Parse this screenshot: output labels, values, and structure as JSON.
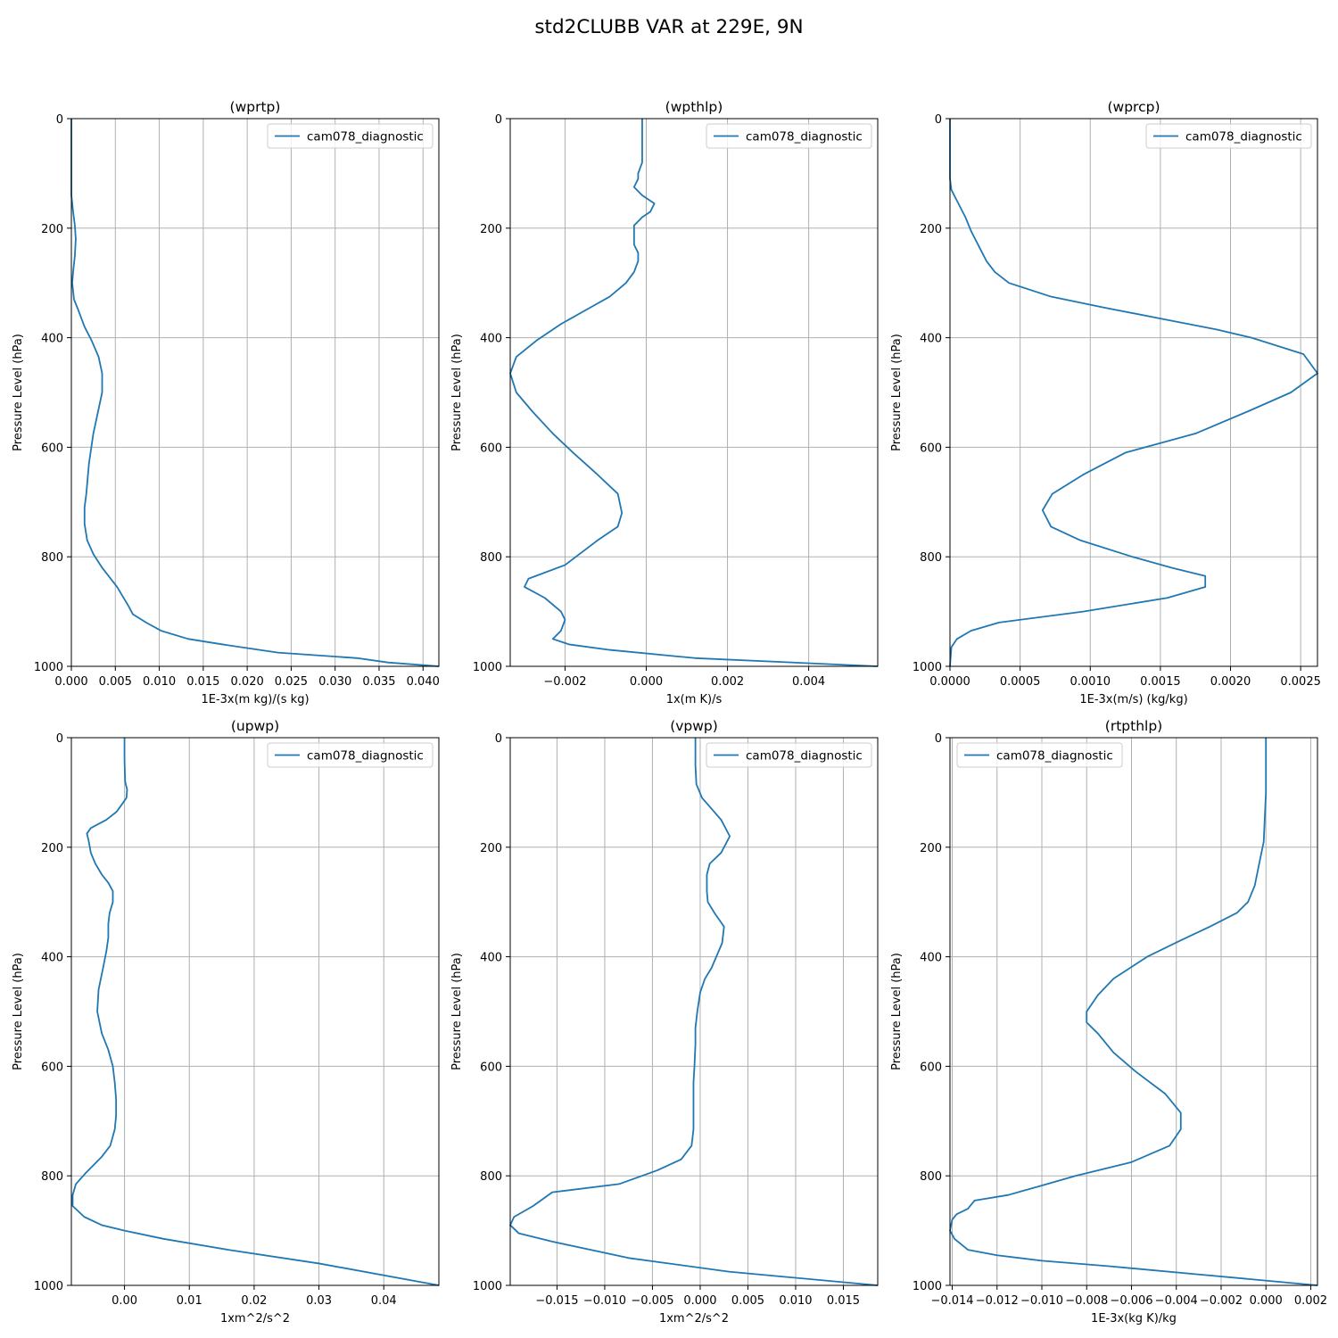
{
  "figure": {
    "title": "std2CLUBB VAR at 229E, 9N"
  },
  "style": {
    "line_color": "#1f77b4"
  },
  "chart_data": [
    {
      "type": "line",
      "title": "(wprtp)",
      "xlabel": "1E-3x(m kg)/(s kg)",
      "ylabel": "Pressure Level (hPa)",
      "xlim": [
        0,
        0.0418
      ],
      "ylim": [
        1000,
        0
      ],
      "xticks": [
        0,
        0.005,
        0.01,
        0.015,
        0.02,
        0.025,
        0.03,
        0.035,
        0.04
      ],
      "xtick_labels": [
        "0.000",
        "0.005",
        "0.010",
        "0.015",
        "0.020",
        "0.025",
        "0.030",
        "0.035",
        "0.040"
      ],
      "yticks": [
        0,
        200,
        400,
        600,
        800,
        1000
      ],
      "ytick_labels": [
        "0",
        "200",
        "400",
        "600",
        "800",
        "1000"
      ],
      "grid": true,
      "legend": "upper right",
      "series": [
        {
          "name": "cam078_diagnostic",
          "x": [
            0,
            0,
            0.0002,
            0.0004,
            0.0005,
            0.0004,
            0.0002,
            0.0001,
            0.0003,
            0.0008,
            0.0015,
            0.0023,
            0.0031,
            0.0035,
            0.0035,
            0.0025,
            0.002,
            0.0017,
            0.0015,
            0.0015,
            0.0018,
            0.0025,
            0.0035,
            0.0052,
            0.0065,
            0.007,
            0.0085,
            0.0102,
            0.0133,
            0.0172,
            0.0235,
            0.0325,
            0.036,
            0.0418
          ],
          "y": [
            0,
            140,
            170,
            195,
            220,
            250,
            280,
            300,
            330,
            350,
            380,
            405,
            435,
            465,
            500,
            575,
            630,
            685,
            710,
            740,
            770,
            795,
            820,
            855,
            890,
            905,
            920,
            935,
            950,
            960,
            975,
            985,
            993,
            1000
          ]
        }
      ]
    },
    {
      "type": "line",
      "title": "(wpthlp)",
      "xlabel": "1x(m K)/s",
      "ylabel": "Pressure Level (hPa)",
      "xlim": [
        -0.00335,
        0.0057
      ],
      "ylim": [
        1000,
        0
      ],
      "xticks": [
        -0.002,
        0,
        0.002,
        0.004
      ],
      "xtick_labels": [
        "−0.002",
        "0.000",
        "0.002",
        "0.004"
      ],
      "yticks": [
        0,
        200,
        400,
        600,
        800,
        1000
      ],
      "ytick_labels": [
        "0",
        "200",
        "400",
        "600",
        "800",
        "1000"
      ],
      "grid": true,
      "legend": "upper right",
      "series": [
        {
          "name": "cam078_diagnostic",
          "x": [
            -0.0001,
            -0.0001,
            -0.0001,
            -0.0001,
            -0.0002,
            -0.0002,
            -0.0003,
            -0.0001,
            0.0002,
            0.0001,
            -0.0001,
            -0.0003,
            -0.0003,
            -0.0003,
            -0.0002,
            -0.0002,
            -0.0003,
            -0.0005,
            -0.0009,
            -0.0015,
            -0.0021,
            -0.0027,
            -0.0032,
            -0.00335,
            -0.0032,
            -0.0028,
            -0.0023,
            -0.0018,
            -0.0012,
            -0.0007,
            -0.0006,
            -0.0007,
            -0.0012,
            -0.002,
            -0.0029,
            -0.003,
            -0.0025,
            -0.0021,
            -0.002,
            -0.0021,
            -0.0023,
            -0.0019,
            -0.0009,
            0.0012,
            0.0057
          ],
          "y": [
            0,
            20,
            50,
            80,
            100,
            110,
            125,
            140,
            155,
            170,
            180,
            195,
            210,
            230,
            245,
            260,
            280,
            300,
            325,
            350,
            375,
            405,
            435,
            465,
            500,
            535,
            575,
            610,
            650,
            685,
            720,
            745,
            770,
            815,
            840,
            855,
            875,
            900,
            915,
            935,
            950,
            960,
            970,
            985,
            1000
          ]
        }
      ]
    },
    {
      "type": "line",
      "title": "(wprcp)",
      "xlabel": "1E-3x(m/s) (kg/kg)",
      "ylabel": "Pressure Level (hPa)",
      "xlim": [
        0,
        0.00262
      ],
      "ylim": [
        1000,
        0
      ],
      "xticks": [
        0,
        0.0005,
        0.001,
        0.0015,
        0.002,
        0.0025
      ],
      "xtick_labels": [
        "0.0000",
        "0.0005",
        "0.0010",
        "0.0015",
        "0.0020",
        "0.0025"
      ],
      "yticks": [
        0,
        200,
        400,
        600,
        800,
        1000
      ],
      "ytick_labels": [
        "0",
        "200",
        "400",
        "600",
        "800",
        "1000"
      ],
      "grid": true,
      "legend": "upper right",
      "series": [
        {
          "name": "cam078_diagnostic",
          "x": [
            0,
            0,
            1e-05,
            5e-05,
            0.00011,
            0.00015,
            0.00021,
            0.00026,
            0.00032,
            0.00042,
            0.00072,
            0.0011,
            0.0015,
            0.0019,
            0.00215,
            0.00252,
            0.00262,
            0.00243,
            0.00212,
            0.00175,
            0.00125,
            0.00095,
            0.00073,
            0.00066,
            0.00072,
            0.00093,
            0.0013,
            0.00158,
            0.00182,
            0.00182,
            0.00155,
            0.00095,
            0.00035,
            0.00015,
            5e-05,
            1e-05,
            0
          ],
          "y": [
            0,
            110,
            130,
            150,
            180,
            205,
            235,
            260,
            280,
            300,
            325,
            345,
            365,
            385,
            400,
            430,
            465,
            500,
            535,
            575,
            610,
            650,
            685,
            715,
            745,
            770,
            800,
            820,
            835,
            855,
            875,
            900,
            920,
            935,
            950,
            965,
            1000
          ]
        }
      ]
    },
    {
      "type": "line",
      "title": "(upwp)",
      "xlabel": "1xm^2/s^2",
      "ylabel": "Pressure Level (hPa)",
      "xlim": [
        -0.0082,
        0.0485
      ],
      "ylim": [
        1000,
        0
      ],
      "xticks": [
        0,
        0.01,
        0.02,
        0.03,
        0.04
      ],
      "xtick_labels": [
        "0.00",
        "0.01",
        "0.02",
        "0.03",
        "0.04"
      ],
      "yticks": [
        0,
        200,
        400,
        600,
        800,
        1000
      ],
      "ytick_labels": [
        "0",
        "200",
        "400",
        "600",
        "800",
        "1000"
      ],
      "grid": true,
      "legend": "upper right",
      "series": [
        {
          "name": "cam078_diagnostic",
          "x": [
            0,
            0,
            0.0001,
            0.0004,
            0.0003,
            -0.0003,
            -0.0012,
            -0.0028,
            -0.0052,
            -0.0058,
            -0.0055,
            -0.0052,
            -0.0045,
            -0.0035,
            -0.0025,
            -0.0018,
            -0.0018,
            -0.0023,
            -0.0025,
            -0.0025,
            -0.0028,
            -0.0033,
            -0.004,
            -0.0042,
            -0.0035,
            -0.0025,
            -0.0018,
            -0.0015,
            -0.0013,
            -0.0013,
            -0.0015,
            -0.0022,
            -0.0035,
            -0.006,
            -0.0075,
            -0.008,
            -0.008,
            -0.0062,
            -0.0035,
            0,
            0.006,
            0.016,
            0.03,
            0.0485
          ],
          "y": [
            0,
            40,
            80,
            95,
            110,
            120,
            135,
            150,
            165,
            175,
            190,
            210,
            230,
            250,
            265,
            280,
            300,
            320,
            340,
            365,
            390,
            420,
            460,
            500,
            540,
            570,
            600,
            630,
            660,
            690,
            715,
            745,
            765,
            795,
            815,
            835,
            855,
            875,
            890,
            900,
            915,
            935,
            960,
            1000
          ]
        }
      ]
    },
    {
      "type": "line",
      "title": "(vpwp)",
      "xlabel": "1xm^2/s^2",
      "ylabel": "Pressure Level (hPa)",
      "xlim": [
        -0.0199,
        0.0186
      ],
      "ylim": [
        1000,
        0
      ],
      "xticks": [
        -0.015,
        -0.01,
        -0.005,
        0,
        0.005,
        0.01,
        0.015
      ],
      "xtick_labels": [
        "−0.015",
        "−0.010",
        "−0.005",
        "0.000",
        "0.005",
        "0.010",
        "0.015"
      ],
      "yticks": [
        0,
        200,
        400,
        600,
        800,
        1000
      ],
      "ytick_labels": [
        "0",
        "200",
        "400",
        "600",
        "800",
        "1000"
      ],
      "grid": true,
      "legend": "upper right",
      "series": [
        {
          "name": "cam078_diagnostic",
          "x": [
            -0.0005,
            -0.0005,
            -0.0004,
            0.0002,
            0.0012,
            0.0022,
            0.0031,
            0.0022,
            0.001,
            0.0007,
            0.0007,
            0.0008,
            0.0015,
            0.0025,
            0.0023,
            0.0012,
            0.0005,
            0,
            -0.0003,
            -0.0005,
            -0.0005,
            -0.0006,
            -0.0007,
            -0.0007,
            -0.0007,
            -0.0007,
            -0.0009,
            -0.002,
            -0.0045,
            -0.0085,
            -0.0155,
            -0.0175,
            -0.0195,
            -0.0199,
            -0.019,
            -0.0155,
            -0.0075,
            0.003,
            0.0186
          ],
          "y": [
            0,
            50,
            85,
            110,
            130,
            150,
            180,
            210,
            230,
            250,
            280,
            300,
            320,
            345,
            375,
            420,
            440,
            465,
            500,
            530,
            560,
            600,
            630,
            660,
            690,
            715,
            745,
            770,
            790,
            815,
            830,
            855,
            875,
            890,
            905,
            920,
            950,
            975,
            1000
          ]
        }
      ]
    },
    {
      "type": "line",
      "title": "(rtpthlp)",
      "xlabel": "1E-3x(kg K)/kg",
      "ylabel": "Pressure Level (hPa)",
      "xlim": [
        -0.0141,
        0.0023
      ],
      "ylim": [
        1000,
        0
      ],
      "xticks": [
        -0.014,
        -0.012,
        -0.01,
        -0.008,
        -0.006,
        -0.004,
        -0.002,
        0,
        0.002
      ],
      "xtick_labels": [
        "−0.014",
        "−0.012",
        "−0.010",
        "−0.008",
        "−0.006",
        "−0.004",
        "−0.002",
        "0.000",
        "0.002"
      ],
      "yticks": [
        0,
        200,
        400,
        600,
        800,
        1000
      ],
      "ytick_labels": [
        "0",
        "200",
        "400",
        "600",
        "800",
        "1000"
      ],
      "grid": true,
      "legend": "upper left",
      "series": [
        {
          "name": "cam078_diagnostic",
          "x": [
            0,
            0,
            0,
            -0.0001,
            -0.0003,
            -0.0005,
            -0.0008,
            -0.0013,
            -0.0025,
            -0.0038,
            -0.0053,
            -0.0068,
            -0.0075,
            -0.008,
            -0.008,
            -0.0075,
            -0.0068,
            -0.0058,
            -0.0045,
            -0.0038,
            -0.0038,
            -0.0043,
            -0.006,
            -0.0085,
            -0.0102,
            -0.0115,
            -0.013,
            -0.0133,
            -0.0138,
            -0.014,
            -0.0141,
            -0.0139,
            -0.0133,
            -0.012,
            -0.01,
            -0.007,
            -0.003,
            0.0023
          ],
          "y": [
            0,
            50,
            100,
            190,
            230,
            270,
            300,
            320,
            345,
            370,
            400,
            440,
            470,
            500,
            520,
            540,
            575,
            610,
            650,
            685,
            715,
            745,
            775,
            800,
            820,
            835,
            845,
            860,
            870,
            880,
            900,
            915,
            935,
            945,
            955,
            965,
            980,
            1000
          ]
        }
      ]
    }
  ]
}
